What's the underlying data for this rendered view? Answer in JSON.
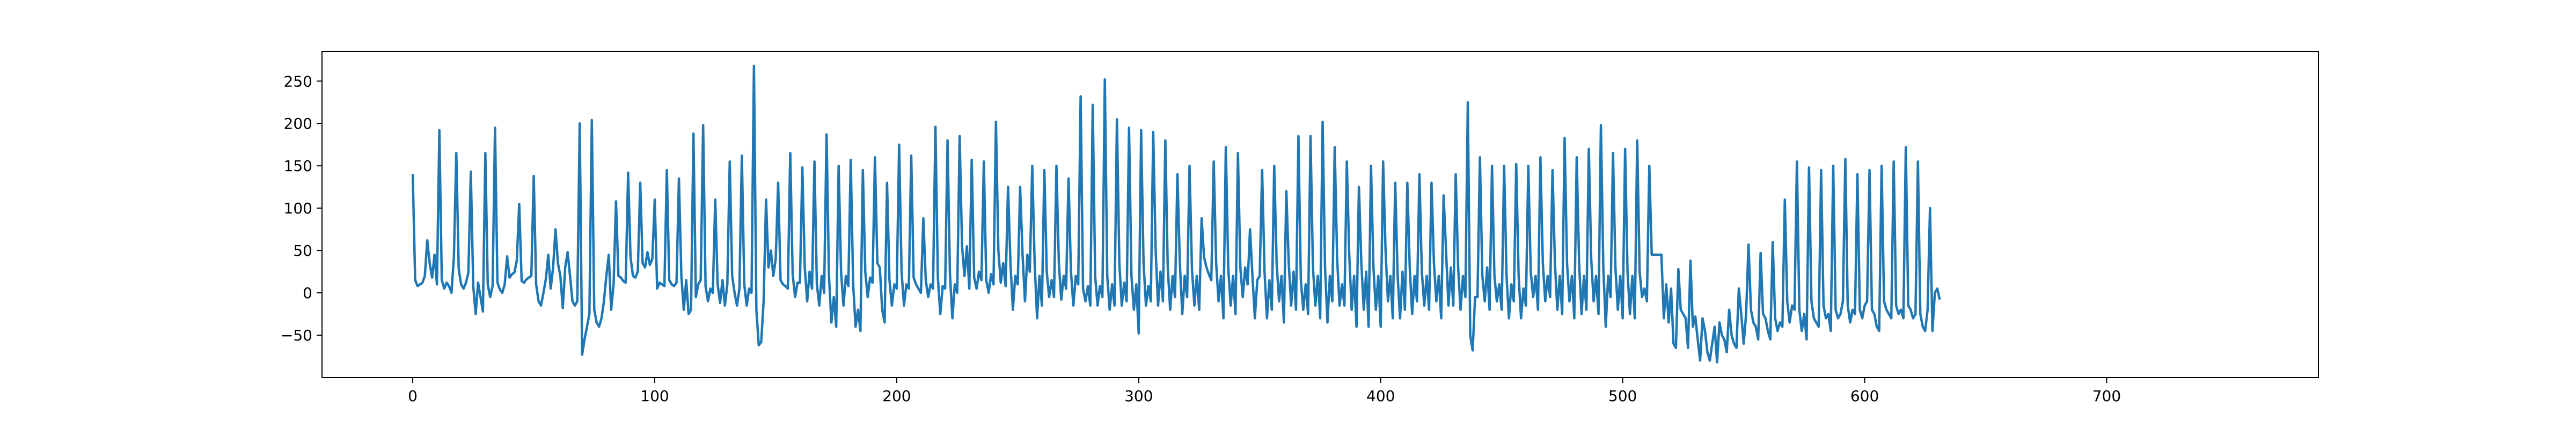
{
  "chart_data": {
    "type": "line",
    "title": "",
    "xlabel": "",
    "ylabel": "",
    "xlim": [
      -37.5,
      787.5
    ],
    "ylim": [
      -100,
      285
    ],
    "x_ticks": [
      0,
      100,
      200,
      300,
      400,
      500,
      600,
      700
    ],
    "y_ticks": [
      -50,
      0,
      50,
      100,
      150,
      200,
      250
    ],
    "grid": false,
    "legend": "none",
    "series": [
      {
        "color": "#1f77b4",
        "x_start": 0,
        "x_step": 1,
        "values": [
          140,
          15,
          8,
          10,
          12,
          20,
          62,
          35,
          18,
          45,
          10,
          192,
          15,
          5,
          12,
          8,
          0,
          42,
          165,
          28,
          10,
          5,
          12,
          24,
          143,
          8,
          -25,
          12,
          -5,
          -22,
          165,
          10,
          -5,
          8,
          195,
          12,
          4,
          0,
          10,
          43,
          18,
          22,
          24,
          38,
          105,
          14,
          12,
          16,
          18,
          20,
          138,
          10,
          -10,
          -15,
          0,
          16,
          45,
          5,
          30,
          75,
          35,
          20,
          -18,
          30,
          48,
          20,
          -10,
          -15,
          -10,
          200,
          -73,
          -55,
          -40,
          -25,
          204,
          -20,
          -35,
          -40,
          -30,
          -10,
          20,
          45,
          -20,
          10,
          108,
          20,
          18,
          14,
          12,
          142,
          42,
          20,
          18,
          25,
          130,
          35,
          30,
          48,
          33,
          40,
          110,
          5,
          12,
          10,
          8,
          145,
          15,
          10,
          8,
          12,
          135,
          20,
          -20,
          15,
          -25,
          -20,
          188,
          -5,
          10,
          15,
          198,
          8,
          -10,
          5,
          0,
          110,
          10,
          -12,
          15,
          -15,
          10,
          155,
          20,
          0,
          -15,
          5,
          162,
          10,
          -15,
          5,
          0,
          268,
          -20,
          -62,
          -58,
          -10,
          110,
          30,
          50,
          20,
          40,
          130,
          15,
          10,
          8,
          5,
          165,
          22,
          -5,
          12,
          12,
          148,
          30,
          -10,
          25,
          5,
          155,
          10,
          -15,
          20,
          0,
          187,
          20,
          -35,
          -5,
          -40,
          150,
          25,
          -15,
          20,
          8,
          157,
          10,
          -40,
          -20,
          -45,
          145,
          25,
          -5,
          18,
          12,
          160,
          35,
          30,
          -20,
          -35,
          130,
          15,
          -15,
          10,
          5,
          175,
          25,
          -15,
          10,
          5,
          162,
          18,
          10,
          5,
          0,
          88,
          15,
          -5,
          10,
          5,
          196,
          18,
          -25,
          8,
          5,
          180,
          22,
          -30,
          10,
          0,
          185,
          55,
          20,
          55,
          5,
          157,
          18,
          5,
          25,
          15,
          155,
          15,
          0,
          22,
          10,
          202,
          50,
          12,
          35,
          8,
          125,
          35,
          -20,
          20,
          10,
          125,
          45,
          -10,
          45,
          25,
          150,
          35,
          -30,
          20,
          -15,
          145,
          25,
          -5,
          15,
          -5,
          150,
          35,
          -8,
          20,
          5,
          135,
          25,
          -15,
          20,
          10,
          232,
          5,
          -10,
          8,
          -15,
          222,
          20,
          -15,
          8,
          -5,
          252,
          20,
          -20,
          10,
          -15,
          205,
          35,
          -15,
          12,
          -10,
          195,
          20,
          -20,
          10,
          -48,
          192,
          35,
          -15,
          8,
          -10,
          190,
          50,
          -15,
          25,
          -10,
          180,
          30,
          -20,
          20,
          -5,
          140,
          35,
          -25,
          20,
          -5,
          150,
          28,
          -15,
          20,
          -20,
          88,
          42,
          30,
          22,
          15,
          155,
          35,
          -10,
          20,
          -30,
          172,
          30,
          -15,
          20,
          -25,
          165,
          30,
          -5,
          30,
          10,
          75,
          20,
          -30,
          15,
          20,
          145,
          25,
          -30,
          15,
          -20,
          150,
          35,
          -10,
          20,
          -35,
          120,
          35,
          -15,
          25,
          -20,
          185,
          15,
          -20,
          10,
          -25,
          185,
          30,
          -15,
          20,
          -30,
          202,
          30,
          -35,
          20,
          -10,
          172,
          40,
          -15,
          10,
          -15,
          155,
          45,
          -20,
          20,
          -40,
          125,
          35,
          -20,
          25,
          -40,
          150,
          30,
          -20,
          20,
          -40,
          155,
          50,
          -10,
          20,
          -30,
          130,
          20,
          -30,
          25,
          -20,
          130,
          30,
          -25,
          20,
          -10,
          140,
          25,
          -15,
          20,
          -20,
          130,
          35,
          -10,
          20,
          -30,
          115,
          50,
          -15,
          30,
          -15,
          140,
          30,
          -20,
          20,
          -5,
          225,
          -50,
          -68,
          -5,
          -5,
          160,
          20,
          -10,
          30,
          -20,
          150,
          20,
          -10,
          10,
          -20,
          150,
          20,
          -30,
          10,
          -10,
          152,
          20,
          -30,
          5,
          -15,
          150,
          25,
          -5,
          20,
          -20,
          160,
          35,
          -10,
          20,
          -5,
          145,
          35,
          -20,
          20,
          -25,
          183,
          35,
          -10,
          20,
          -30,
          160,
          35,
          -25,
          20,
          -20,
          170,
          40,
          -10,
          20,
          -25,
          198,
          30,
          -40,
          20,
          -5,
          165,
          30,
          -20,
          20,
          -30,
          170,
          25,
          -25,
          20,
          -30,
          180,
          25,
          -5,
          5,
          -10,
          150,
          45,
          45,
          45,
          45,
          45,
          -30,
          10,
          -35,
          5,
          -60,
          -65,
          28,
          -20,
          -25,
          -30,
          -65,
          38,
          -40,
          -28,
          -55,
          -80,
          -30,
          -45,
          -70,
          -80,
          -60,
          -40,
          -82,
          -35,
          -50,
          -55,
          -70,
          -20,
          -50,
          -60,
          -65,
          5,
          -25,
          -60,
          -25,
          57,
          -20,
          -35,
          -40,
          -55,
          47,
          -25,
          -30,
          -45,
          -55,
          60,
          -30,
          -45,
          -35,
          -40,
          110,
          -10,
          -35,
          -15,
          -20,
          155,
          -20,
          -45,
          -25,
          -55,
          148,
          -10,
          -30,
          -35,
          -40,
          145,
          -15,
          -30,
          -25,
          -45,
          150,
          -20,
          -30,
          -25,
          -10,
          158,
          -15,
          -35,
          -20,
          -25,
          140,
          -20,
          -30,
          -15,
          -10,
          145,
          -20,
          -25,
          -40,
          -45,
          150,
          -10,
          -20,
          -25,
          -30,
          155,
          -15,
          -25,
          -20,
          -30,
          172,
          -15,
          -20,
          -30,
          -25,
          155,
          -25,
          -40,
          -45,
          -20,
          100,
          -45,
          0,
          5,
          -8
        ]
      }
    ]
  }
}
